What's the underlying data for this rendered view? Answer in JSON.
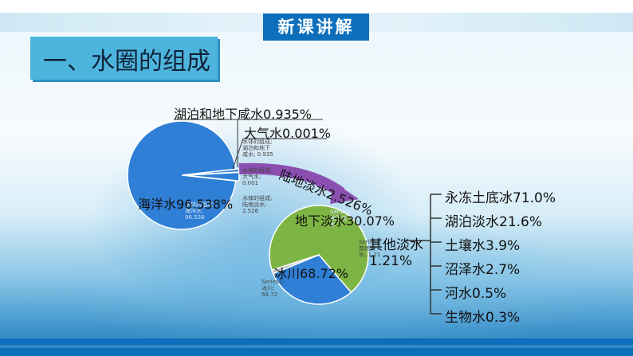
{
  "header": {
    "badge": "新课讲解"
  },
  "section": {
    "title": "一、水圈的组成"
  },
  "chart_data": [
    {
      "type": "pie",
      "categories": [
        "海洋水",
        "湖泊和地下咸水",
        "大气水",
        "陆地淡水"
      ],
      "values": [
        96.538,
        0.935,
        0.001,
        2.526
      ],
      "labels": [
        "海洋水96.538%",
        "湖泊和地下咸水0.935%",
        "大气水0.001%",
        "陆地淡水2.526%"
      ],
      "small_labels": [
        "水体的组成;\n海洋水;\n96.538",
        "水体的组成;\n湖泊和地下\n咸水; 0.935",
        "水体的组成;\n大气水;\n0.001",
        "水体的组成;\n陆地淡水;\n2.526"
      ],
      "colors": [
        "#2f7fd6",
        "#2f7fd6",
        "#2f7fd6",
        "#2f7fd6"
      ]
    },
    {
      "type": "pie",
      "categories": [
        "冰川",
        "地下淡水",
        "其他淡水"
      ],
      "values": [
        68.72,
        30.07,
        1.21
      ],
      "labels": [
        "冰川68.72%",
        "地下淡水30.07%",
        "其他淡水\n1.21%"
      ],
      "small_labels": [
        "Series1;\n冰川;\n68.72",
        "Series1;\n地下淡\n水",
        "Series1;\n其他淡\n水; 1.21"
      ],
      "colors": [
        "#7db544",
        "#2f7fd6",
        "#bdbdbd"
      ]
    }
  ],
  "other_freshwater": {
    "items": [
      "永冻土底冰71.0%",
      "湖泊淡水21.6%",
      "土壤水3.9%",
      "沼泽水2.7%",
      "河水0.5%",
      "生物水0.3%"
    ]
  }
}
